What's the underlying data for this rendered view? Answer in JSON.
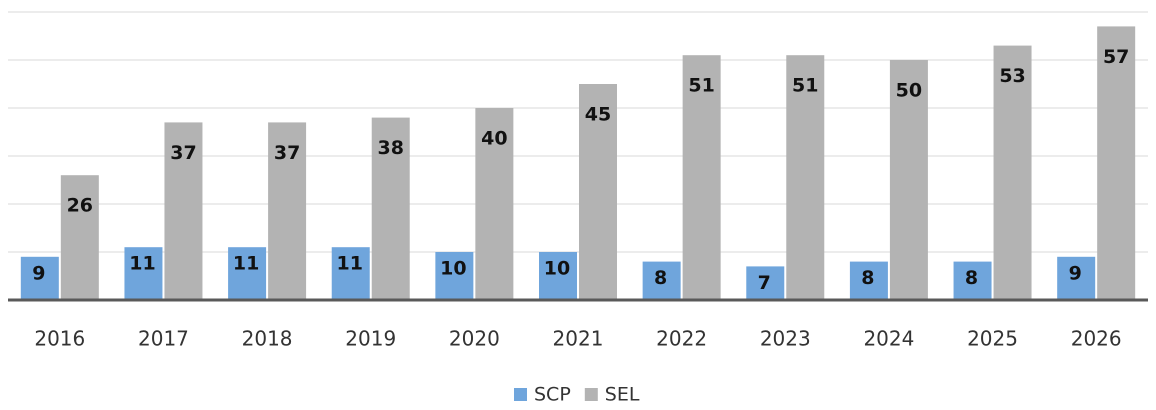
{
  "chart_data": {
    "type": "bar",
    "categories": [
      "2016",
      "2017",
      "2018",
      "2019",
      "2020",
      "2021",
      "2022",
      "2023",
      "2024",
      "2025",
      "2026"
    ],
    "series": [
      {
        "name": "SCP",
        "color": "#6fa5dc",
        "values": [
          9,
          11,
          11,
          11,
          10,
          10,
          8,
          7,
          8,
          8,
          9
        ]
      },
      {
        "name": "SEL",
        "color": "#b3b3b3",
        "values": [
          26,
          37,
          37,
          38,
          40,
          45,
          51,
          51,
          50,
          53,
          57
        ]
      }
    ],
    "ylim": [
      0,
      60
    ],
    "yticks": [
      0,
      10,
      20,
      30,
      40,
      50,
      60
    ],
    "grid": true
  }
}
